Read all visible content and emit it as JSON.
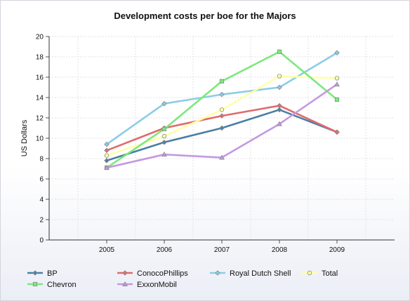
{
  "chart_data": {
    "type": "line",
    "title": "Development costs per boe for the Majors",
    "xlabel": "",
    "ylabel": "US Dollars",
    "categories": [
      "2005",
      "2006",
      "2007",
      "2008",
      "2009"
    ],
    "ylim": [
      0,
      20
    ],
    "yticks": [
      0,
      2,
      4,
      6,
      8,
      10,
      12,
      14,
      16,
      18,
      20
    ],
    "grid": true,
    "legend_position": "bottom",
    "series": [
      {
        "name": "BP",
        "color": "#4a7fa6",
        "marker": "diamond",
        "values": [
          7.8,
          9.6,
          11.0,
          12.8,
          10.6
        ]
      },
      {
        "name": "ConocoPhillips",
        "color": "#e06b6b",
        "marker": "diamond",
        "values": [
          8.8,
          11.0,
          12.2,
          13.2,
          10.6
        ]
      },
      {
        "name": "Royal Dutch Shell",
        "color": "#8ccde6",
        "marker": "diamond",
        "values": [
          9.4,
          13.4,
          14.3,
          15.0,
          18.4
        ]
      },
      {
        "name": "Total",
        "color": "#ffffa8",
        "marker": "circle",
        "values": [
          8.3,
          10.2,
          12.8,
          16.1,
          15.9
        ]
      },
      {
        "name": "Chevron",
        "color": "#7de87d",
        "marker": "square",
        "values": [
          7.1,
          10.9,
          15.6,
          18.5,
          13.8
        ]
      },
      {
        "name": "ExxonMobil",
        "color": "#c39ae0",
        "marker": "triangle",
        "values": [
          7.1,
          8.4,
          8.1,
          11.4,
          15.3
        ]
      }
    ]
  }
}
